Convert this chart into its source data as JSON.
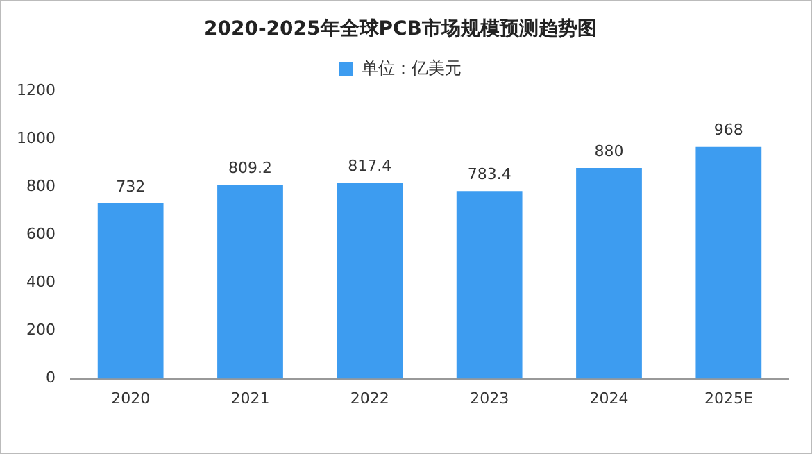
{
  "chart_data": {
    "type": "bar",
    "title": "2020-2025年全球PCB市场规模预测趋势图",
    "categories": [
      "2020",
      "2021",
      "2022",
      "2023",
      "2024",
      "2025E"
    ],
    "series": [
      {
        "name": "单位：亿美元",
        "color": "#3d9cf0",
        "values": [
          732,
          809.2,
          817.4,
          783.4,
          880,
          968
        ]
      }
    ],
    "ylim": [
      0,
      1200
    ],
    "yticks": [
      0,
      200,
      400,
      600,
      800,
      1000,
      1200
    ],
    "grid": false,
    "legend": "top",
    "data_labels": true
  }
}
